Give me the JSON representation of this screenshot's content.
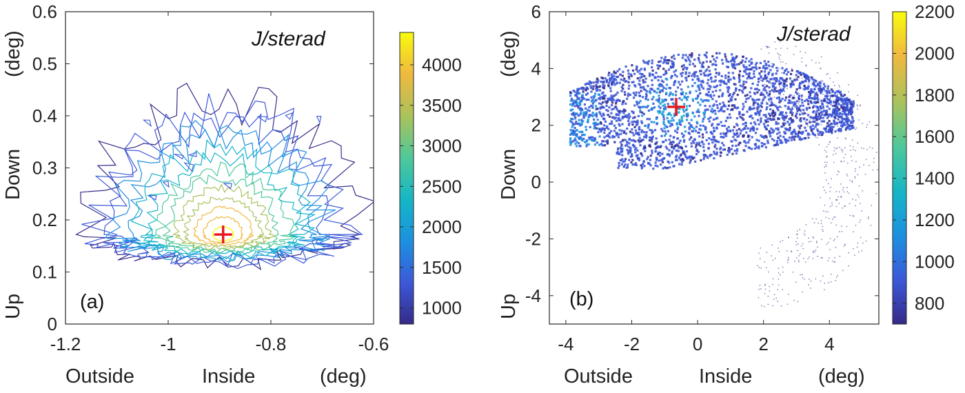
{
  "chart_data": [
    {
      "type": "contour",
      "panel_label": "(a)",
      "annotation": "J/sterad",
      "xlim": [
        -1.2,
        -0.6
      ],
      "ylim": [
        0,
        0.6
      ],
      "x_ticks": [
        "-1.2",
        "-1",
        "-0.8",
        "-0.6"
      ],
      "y_ticks": [
        "0",
        "0.1",
        "0.2",
        "0.3",
        "0.4",
        "0.5",
        "0.6"
      ],
      "x_axis_words": [
        "Outside",
        "Inside",
        "(deg)"
      ],
      "y_axis_words": [
        "Up",
        "Down",
        "(deg)"
      ],
      "colorbar": {
        "min": 800,
        "max": 4400,
        "ticks": [
          "1000",
          "1500",
          "2000",
          "2500",
          "3000",
          "3500",
          "4000"
        ]
      },
      "marker": {
        "x": -0.893,
        "y": 0.172,
        "symbol": "+",
        "color": "#e8191f"
      }
    },
    {
      "type": "heatmap",
      "panel_label": "(b)",
      "annotation": "J/sterad",
      "xlim": [
        -4.5,
        5.5
      ],
      "ylim": [
        -5,
        6
      ],
      "x_ticks": [
        "-4",
        "-2",
        "0",
        "2",
        "4"
      ],
      "y_ticks": [
        "-4",
        "-2",
        "0",
        "2",
        "4",
        "6"
      ],
      "x_axis_words": [
        "Outside",
        "Inside",
        "(deg)"
      ],
      "y_axis_words": [
        "Up",
        "Down",
        "(deg)"
      ],
      "colorbar": {
        "min": 700,
        "max": 2200,
        "ticks": [
          "800",
          "1000",
          "1200",
          "1400",
          "1600",
          "1800",
          "2000",
          "2200"
        ]
      },
      "marker": {
        "x": -0.65,
        "y": 2.65,
        "symbol": "+",
        "color": "#e8191f"
      }
    }
  ],
  "colors": {
    "parula": [
      "#352a87",
      "#3c58d8",
      "#1d8fdf",
      "#14b5c8",
      "#4fc89a",
      "#a9c25c",
      "#f0b93f",
      "#f9fb0e"
    ],
    "marker": "#e8191f"
  }
}
